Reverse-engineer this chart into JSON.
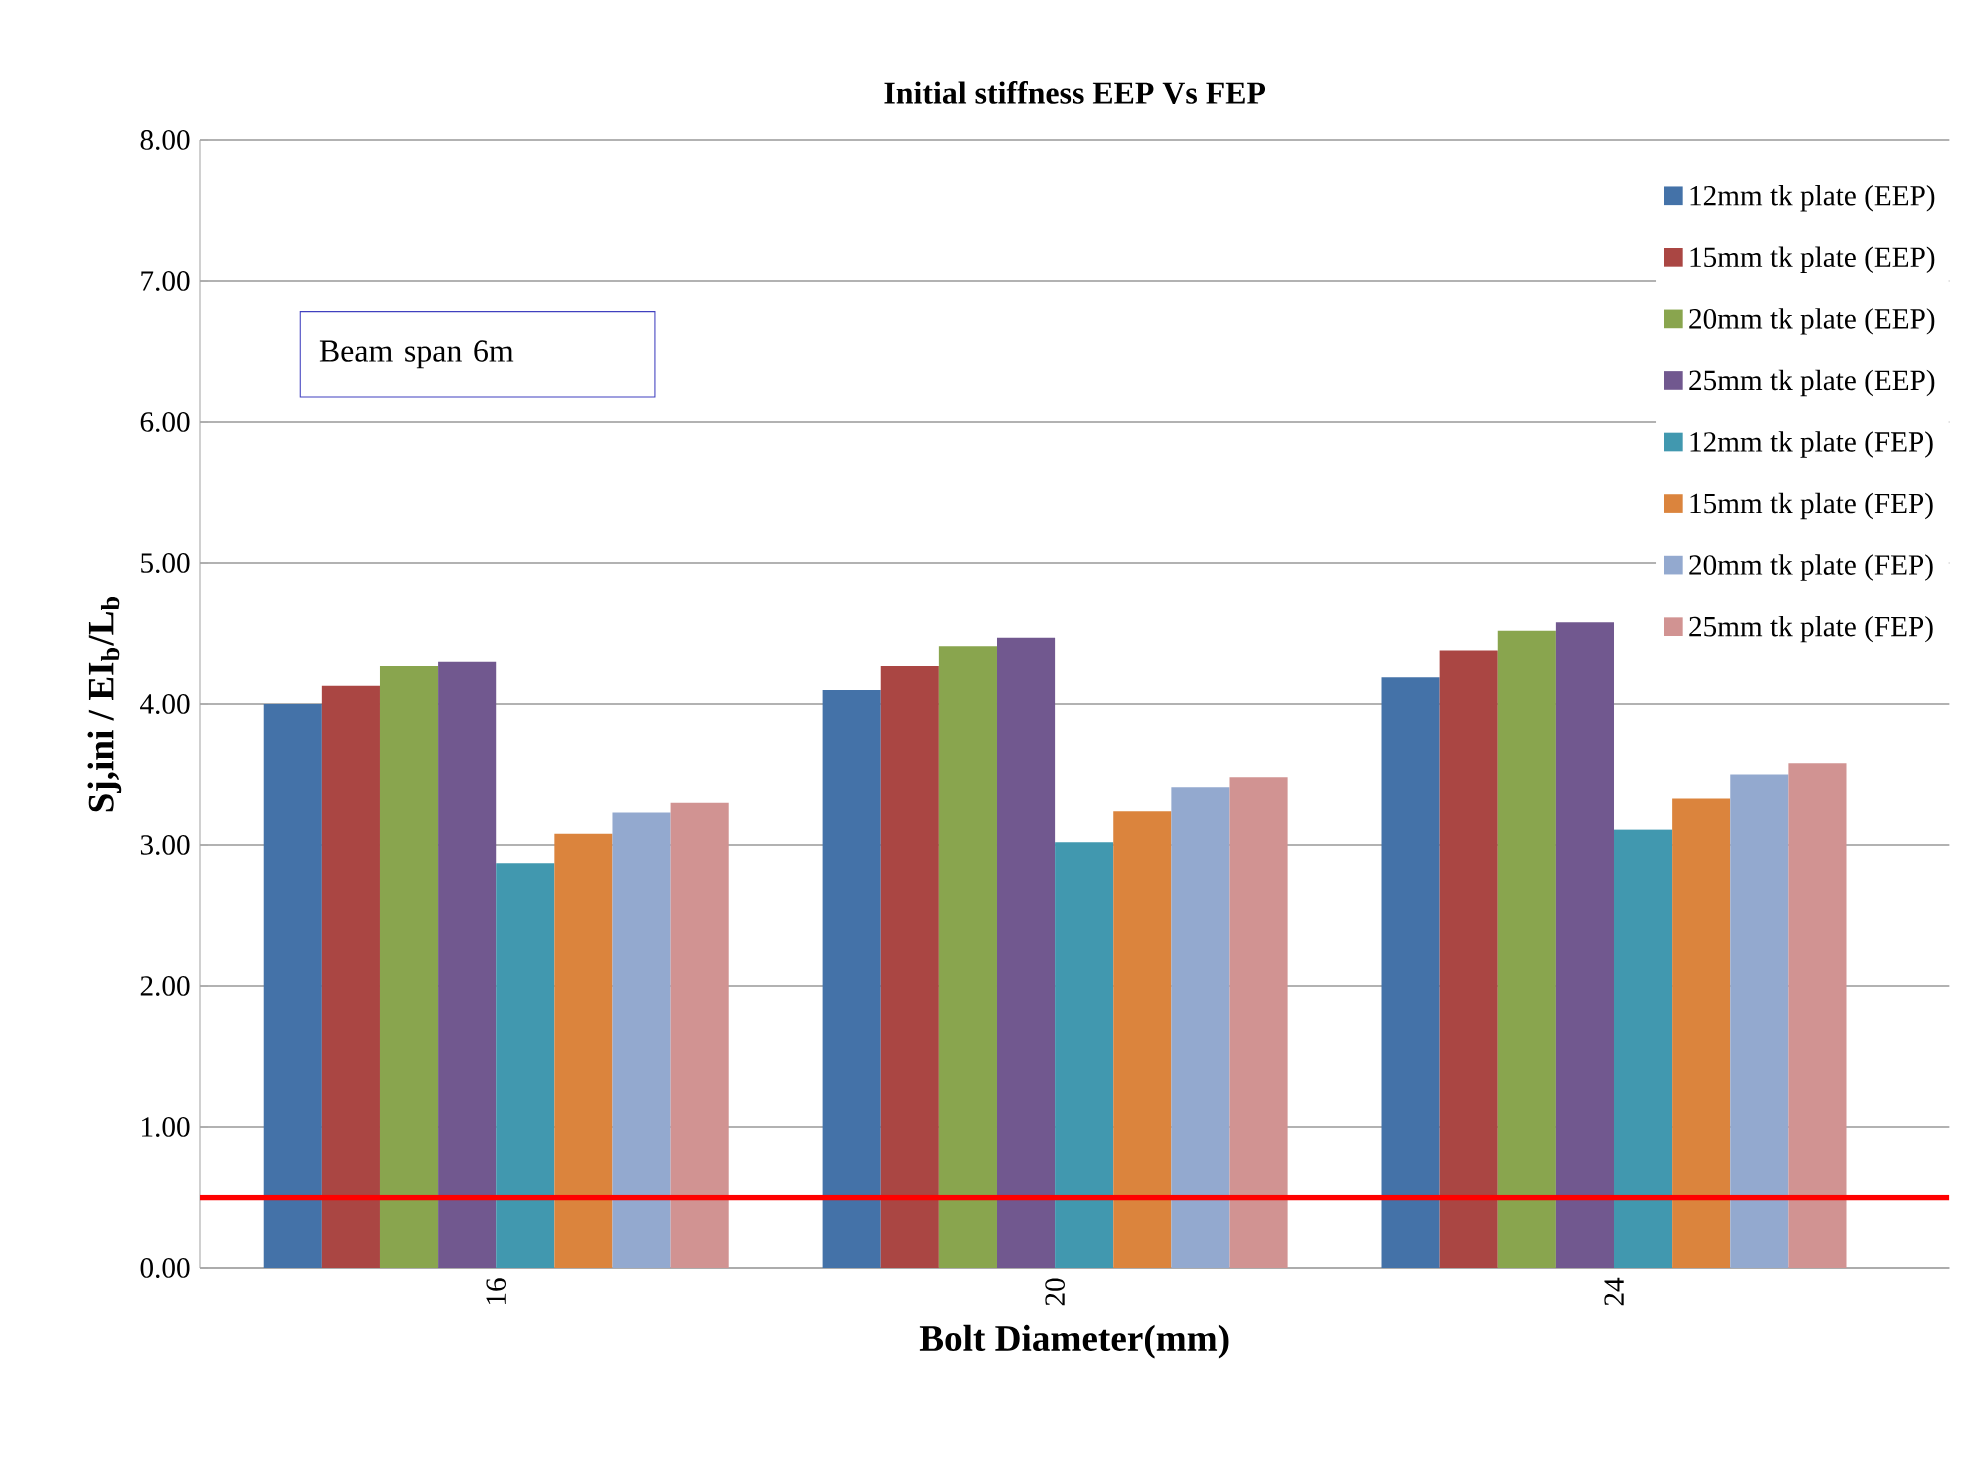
{
  "chart_data": {
    "type": "bar",
    "title": "Initial  stiffness EEP Vs FEP",
    "xlabel": "Bolt Diameter(mm)",
    "ylabel": "Sj,ini  / EI$_{b}$/L$_{b}$",
    "categories": [
      "16",
      "20",
      "24"
    ],
    "series": [
      {
        "name": "12mm tk plate (EEP)",
        "color": "#4472a8",
        "values": [
          4.0,
          4.1,
          4.19
        ]
      },
      {
        "name": "15mm tk plate (EEP)",
        "color": "#aa4643",
        "values": [
          4.13,
          4.27,
          4.38
        ]
      },
      {
        "name": "20mm tk plate (EEP)",
        "color": "#89a54e",
        "values": [
          4.27,
          4.41,
          4.52
        ]
      },
      {
        "name": "25mm tk plate (EEP)",
        "color": "#71588f",
        "values": [
          4.3,
          4.47,
          4.58
        ]
      },
      {
        "name": "12mm tk plate (FEP)",
        "color": "#4198af",
        "values": [
          2.87,
          3.02,
          3.11
        ]
      },
      {
        "name": "15mm tk plate (FEP)",
        "color": "#db843d",
        "values": [
          3.08,
          3.24,
          3.33
        ]
      },
      {
        "name": "20mm tk plate (FEP)",
        "color": "#93a9cf",
        "values": [
          3.23,
          3.41,
          3.5
        ]
      },
      {
        "name": "25mm tk plate (FEP)",
        "color": "#d19392",
        "values": [
          3.3,
          3.48,
          3.58
        ]
      }
    ],
    "ylim": [
      0,
      8
    ],
    "yticks": [
      {
        "value": 0,
        "label": "0.00"
      },
      {
        "value": 1,
        "label": "1.00"
      },
      {
        "value": 2,
        "label": "2.00"
      },
      {
        "value": 3,
        "label": "3.00"
      },
      {
        "value": 4,
        "label": "4.00"
      },
      {
        "value": 5,
        "label": "5.00"
      },
      {
        "value": 6,
        "label": "6.00"
      },
      {
        "value": 7,
        "label": "7.00"
      },
      {
        "value": 8,
        "label": "8.00"
      }
    ],
    "grid": "y",
    "legend": "right",
    "ref_lines": [
      {
        "axis": "y",
        "value": 0.5,
        "color": "#ff0000"
      }
    ],
    "annotations": [
      "Beam span 6m"
    ]
  }
}
